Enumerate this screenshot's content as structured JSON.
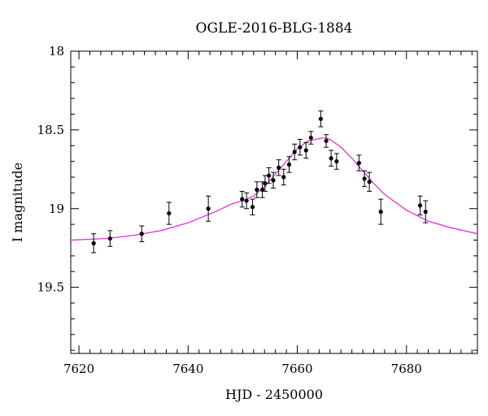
{
  "chart_data": {
    "type": "scatter",
    "title": "OGLE-2016-BLG-1884",
    "xlabel": "HJD - 2450000",
    "ylabel": "I magnitude",
    "xlim": [
      7618.5,
      7693
    ],
    "ylim": [
      19.92,
      18.0
    ],
    "y_inverted": true,
    "grid": false,
    "x_ticks": [
      {
        "value": 7620,
        "label": "7620"
      },
      {
        "value": 7640,
        "label": "7640"
      },
      {
        "value": 7660,
        "label": "7660"
      },
      {
        "value": 7680,
        "label": "7680"
      }
    ],
    "y_ticks": [
      {
        "value": 18,
        "label": "18"
      },
      {
        "value": 18.5,
        "label": "18.5"
      },
      {
        "value": 19,
        "label": "19"
      },
      {
        "value": 19.5,
        "label": "19.5"
      }
    ],
    "series": [
      {
        "type": "errorbar",
        "color": "#000000",
        "points": [
          {
            "x": 7622.7,
            "y": 19.22,
            "err": 0.06
          },
          {
            "x": 7625.7,
            "y": 19.19,
            "err": 0.05
          },
          {
            "x": 7631.5,
            "y": 19.16,
            "err": 0.05
          },
          {
            "x": 7636.5,
            "y": 19.03,
            "err": 0.07
          },
          {
            "x": 7643.7,
            "y": 19.0,
            "err": 0.08
          },
          {
            "x": 7649.9,
            "y": 18.94,
            "err": 0.05
          },
          {
            "x": 7650.7,
            "y": 18.95,
            "err": 0.05
          },
          {
            "x": 7651.8,
            "y": 18.99,
            "err": 0.05
          },
          {
            "x": 7652.6,
            "y": 18.88,
            "err": 0.05
          },
          {
            "x": 7653.6,
            "y": 18.88,
            "err": 0.05
          },
          {
            "x": 7654.1,
            "y": 18.84,
            "err": 0.05
          },
          {
            "x": 7654.8,
            "y": 18.79,
            "err": 0.05
          },
          {
            "x": 7655.6,
            "y": 18.82,
            "err": 0.05
          },
          {
            "x": 7656.6,
            "y": 18.74,
            "err": 0.05
          },
          {
            "x": 7657.5,
            "y": 18.8,
            "err": 0.05
          },
          {
            "x": 7658.5,
            "y": 18.72,
            "err": 0.05
          },
          {
            "x": 7659.5,
            "y": 18.64,
            "err": 0.05
          },
          {
            "x": 7660.5,
            "y": 18.61,
            "err": 0.05
          },
          {
            "x": 7661.6,
            "y": 18.63,
            "err": 0.05
          },
          {
            "x": 7662.5,
            "y": 18.55,
            "err": 0.04
          },
          {
            "x": 7664.3,
            "y": 18.43,
            "err": 0.05
          },
          {
            "x": 7665.3,
            "y": 18.57,
            "err": 0.04
          },
          {
            "x": 7666.2,
            "y": 18.68,
            "err": 0.05
          },
          {
            "x": 7667.2,
            "y": 18.7,
            "err": 0.05
          },
          {
            "x": 7671.3,
            "y": 18.71,
            "err": 0.05
          },
          {
            "x": 7672.3,
            "y": 18.81,
            "err": 0.05
          },
          {
            "x": 7673.2,
            "y": 18.83,
            "err": 0.06
          },
          {
            "x": 7675.3,
            "y": 19.02,
            "err": 0.08
          },
          {
            "x": 7682.5,
            "y": 18.98,
            "err": 0.06
          },
          {
            "x": 7683.5,
            "y": 19.02,
            "err": 0.07
          }
        ]
      },
      {
        "type": "model-curve",
        "color": "#e020e0",
        "points": [
          {
            "x": 7618.5,
            "y": 19.2
          },
          {
            "x": 7625,
            "y": 19.19
          },
          {
            "x": 7630,
            "y": 19.17
          },
          {
            "x": 7635,
            "y": 19.14
          },
          {
            "x": 7640,
            "y": 19.09
          },
          {
            "x": 7645,
            "y": 19.02
          },
          {
            "x": 7648,
            "y": 18.97
          },
          {
            "x": 7650,
            "y": 18.95
          },
          {
            "x": 7652,
            "y": 18.92
          },
          {
            "x": 7654,
            "y": 18.86
          },
          {
            "x": 7656,
            "y": 18.78
          },
          {
            "x": 7658,
            "y": 18.7
          },
          {
            "x": 7660,
            "y": 18.62
          },
          {
            "x": 7662,
            "y": 18.57
          },
          {
            "x": 7664,
            "y": 18.555
          },
          {
            "x": 7665,
            "y": 18.55
          },
          {
            "x": 7666,
            "y": 18.56
          },
          {
            "x": 7668,
            "y": 18.61
          },
          {
            "x": 7670,
            "y": 18.68
          },
          {
            "x": 7672,
            "y": 18.76
          },
          {
            "x": 7674,
            "y": 18.84
          },
          {
            "x": 7676,
            "y": 18.91
          },
          {
            "x": 7678,
            "y": 18.96
          },
          {
            "x": 7680,
            "y": 19.01
          },
          {
            "x": 7684,
            "y": 19.08
          },
          {
            "x": 7688,
            "y": 19.12
          },
          {
            "x": 7693,
            "y": 19.16
          }
        ]
      }
    ]
  }
}
